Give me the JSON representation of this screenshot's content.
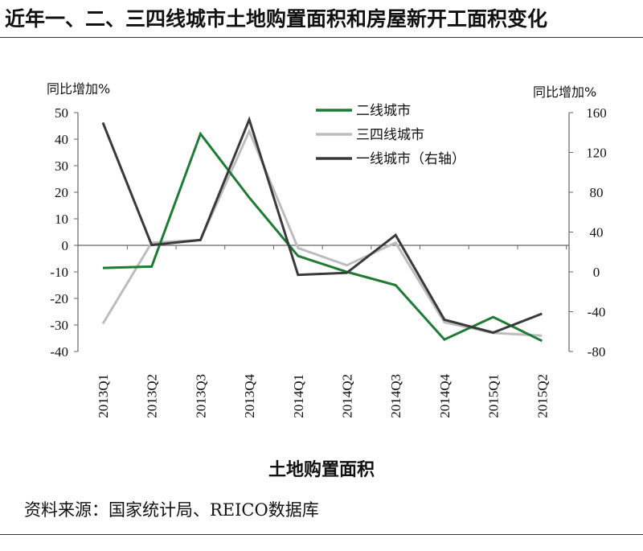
{
  "header": {
    "title": "近年一、二、三四线城市土地购置面积和房屋新开工面积变化"
  },
  "caption": "土地购置面积",
  "source": "资料来源：国家统计局、REICO数据库",
  "chart_data": {
    "type": "line",
    "title": "土地购置面积",
    "categories": [
      "2013Q1",
      "2013Q2",
      "2013Q3",
      "2013Q4",
      "2014Q1",
      "2014Q2",
      "2014Q3",
      "2014Q4",
      "2015Q1",
      "2015Q2"
    ],
    "left_axis": {
      "label": "同比增加%",
      "ylim": [
        -40,
        50
      ],
      "ticks": [
        50,
        40,
        30,
        20,
        10,
        0,
        -10,
        -20,
        -30,
        -40
      ]
    },
    "right_axis": {
      "label": "同比增加%",
      "ylim": [
        -80,
        160
      ],
      "ticks": [
        160,
        120,
        80,
        40,
        0,
        -40,
        -80
      ]
    },
    "series": [
      {
        "name": "二线城市",
        "axis": "left",
        "color": "#1e7b34",
        "values": [
          -8.5,
          -8,
          42,
          18,
          -4,
          -10,
          -15,
          -35.5,
          -27,
          -36
        ]
      },
      {
        "name": "三四线城市",
        "axis": "left",
        "color": "#bdbdbd",
        "values": [
          -29.5,
          1,
          2,
          43,
          -1,
          -7.5,
          1,
          -29,
          -33,
          -34
        ]
      },
      {
        "name": "一线城市（右轴）",
        "axis": "right",
        "color": "#3a3a3a",
        "values": [
          150,
          27,
          32,
          153,
          -3,
          -1,
          37,
          -48,
          -61,
          -42
        ]
      }
    ],
    "legend_position": "top-right",
    "grid": false
  }
}
